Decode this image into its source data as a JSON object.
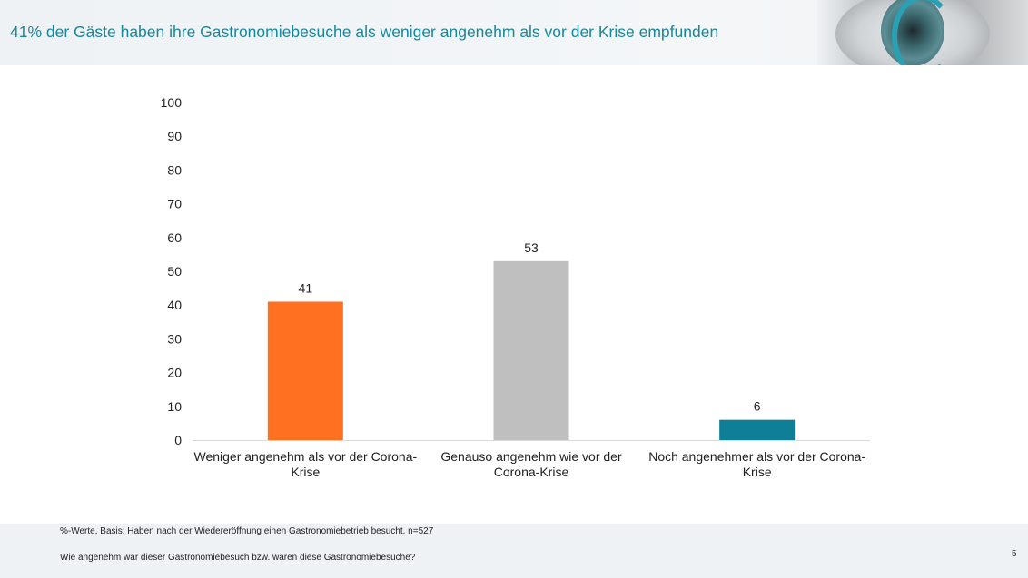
{
  "header": {
    "title": "41% der Gäste haben ihre Gastronomiebesuche als weniger angenehm als vor der Krise empfunden"
  },
  "footer": {
    "basis": "%-Werte, Basis: Haben nach der Wiedereröffnung einen Gastronomiebetrieb besucht, n=527",
    "question": "Wie angenehm war dieser Gastronomiebesuch bzw. waren diese Gastronomiebesuche?",
    "page_number": "5"
  },
  "chart_data": {
    "type": "bar",
    "categories": [
      [
        "Weniger angenehm als vor der Corona-",
        "Krise"
      ],
      [
        "Genauso angenehm wie vor der",
        "Corona-Krise"
      ],
      [
        "Noch angenehmer als vor der Corona-",
        "Krise"
      ]
    ],
    "values": [
      41,
      53,
      6
    ],
    "colors": [
      "#ff7020",
      "#bfbfbf",
      "#0e7f96"
    ],
    "ylim": [
      0,
      100
    ],
    "yticks": [
      0,
      10,
      20,
      30,
      40,
      50,
      60,
      70,
      80,
      90,
      100
    ],
    "grid": false,
    "data_labels": true
  }
}
